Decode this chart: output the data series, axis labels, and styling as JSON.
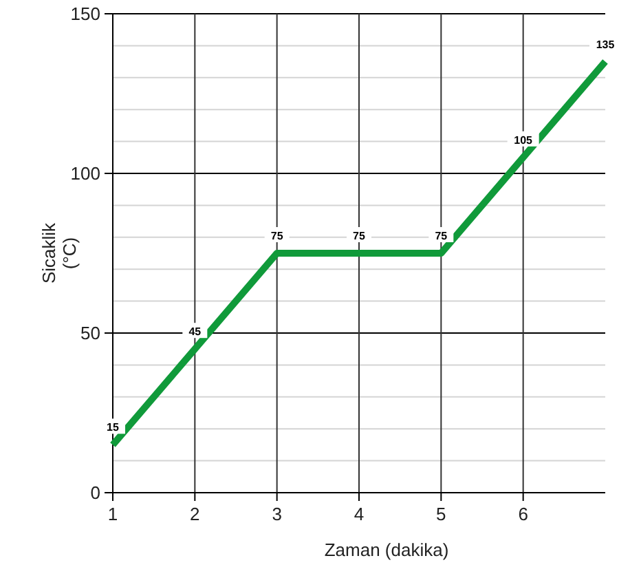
{
  "chart_data": {
    "type": "line",
    "xlabel": "Zaman (dakika)",
    "ylabel": "Sicaklik\n(°C)",
    "x": [
      1,
      2,
      3,
      4,
      5,
      6,
      7
    ],
    "series": [
      {
        "color": "#109a3a",
        "values": [
          15,
          45,
          75,
          75,
          75,
          105,
          135
        ]
      }
    ],
    "xlim": [
      1,
      7
    ],
    "xticks": [
      1,
      2,
      3,
      4,
      5,
      6
    ],
    "ylim": [
      0,
      150
    ],
    "yticks": [
      0,
      {
        "value": 10,
        "label": null
      },
      {
        "value": 20,
        "label": null
      },
      {
        "value": 30,
        "label": null
      },
      {
        "value": 40,
        "label": null
      },
      50,
      {
        "value": 60,
        "label": null
      },
      {
        "value": 70,
        "label": null
      },
      {
        "value": 80,
        "label": null
      },
      {
        "value": 90,
        "label": null
      },
      100,
      {
        "value": 110,
        "label": null
      },
      {
        "value": 120,
        "label": null
      },
      {
        "value": 130,
        "label": null
      },
      {
        "value": 140,
        "label": null
      },
      150
    ],
    "grid": true,
    "data_labels": true,
    "line_style": "solid",
    "marker": "none"
  }
}
